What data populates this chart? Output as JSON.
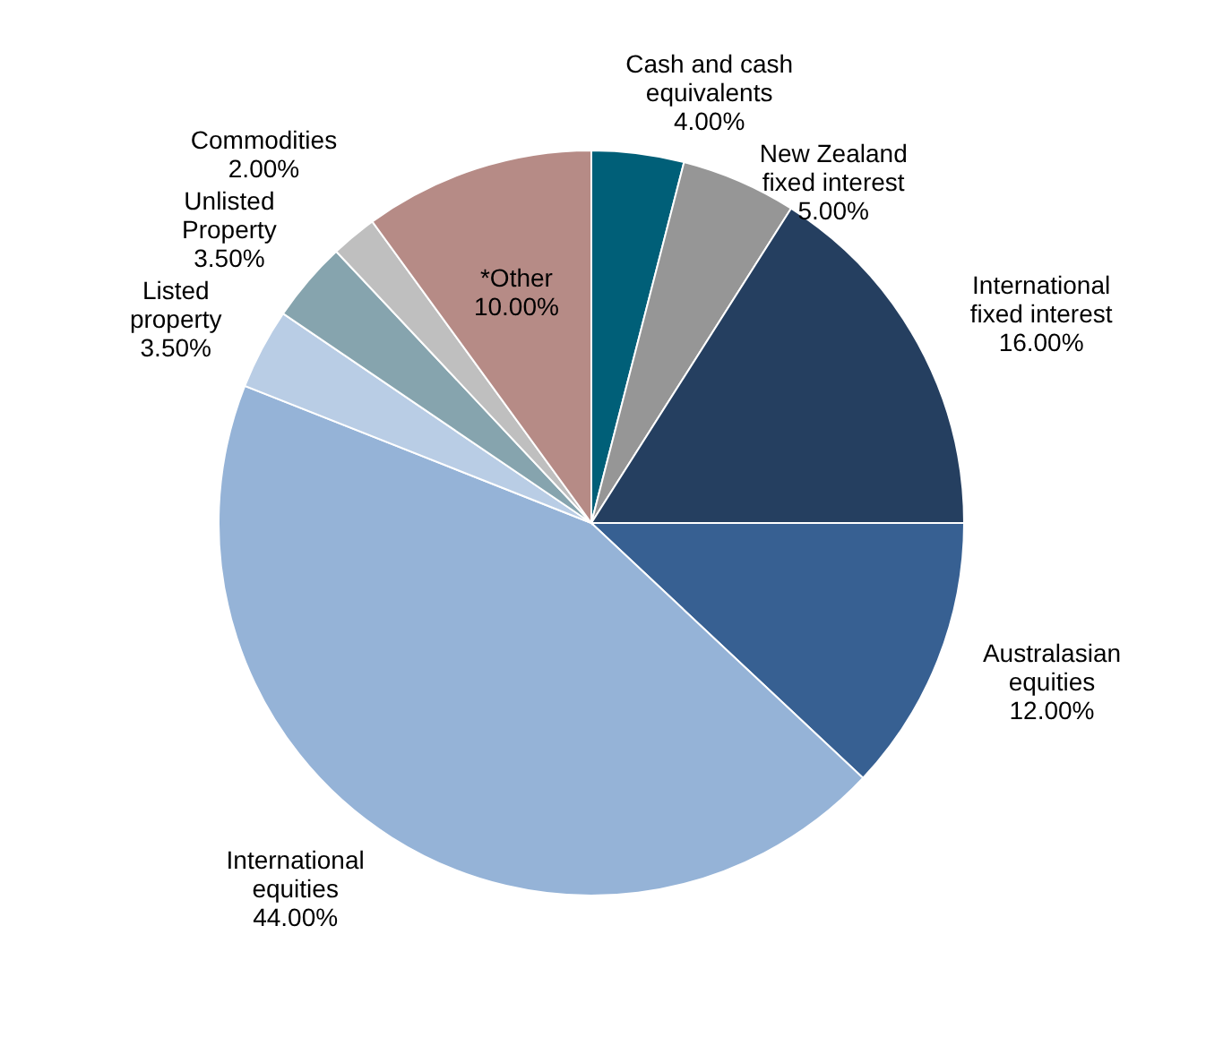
{
  "chart_data": {
    "type": "pie",
    "categories": [
      "Cash and cash equivalents",
      "New Zealand fixed interest",
      "International fixed interest",
      "Australasian equities",
      "International equities",
      "Listed property",
      "Unlisted Property",
      "Commodities",
      "*Other"
    ],
    "values": [
      4,
      5,
      16,
      12,
      44,
      3.5,
      3.5,
      2,
      10
    ],
    "value_labels": [
      "4.00%",
      "5.00%",
      "16.00%",
      "12.00%",
      "44.00%",
      "3.50%",
      "3.50%",
      "2.00%",
      "10.00%"
    ],
    "colors": [
      "#005f78",
      "#969696",
      "#253f60",
      "#376092",
      "#95b3d7",
      "#b9cde5",
      "#86a4ae",
      "#bfbfbf",
      "#b68b86"
    ]
  }
}
